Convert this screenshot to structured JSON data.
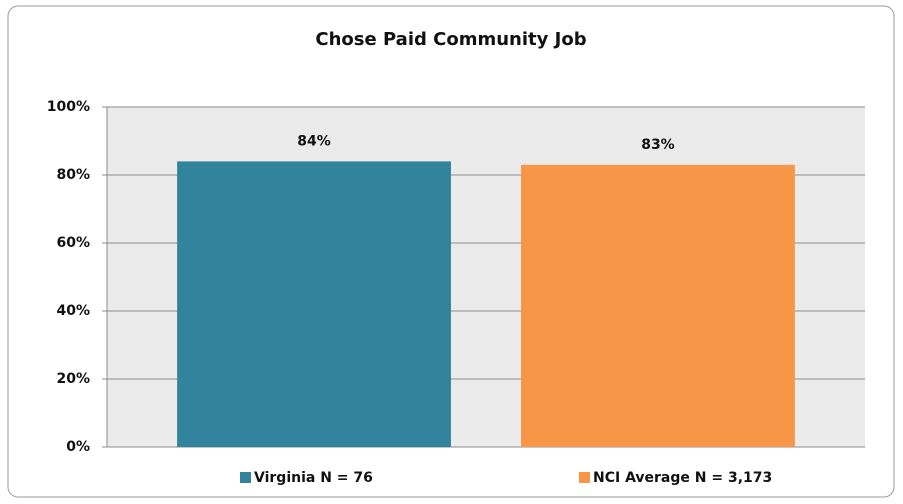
{
  "chart_data": {
    "type": "bar",
    "title": "Chose Paid Community Job",
    "categories": [
      null
    ],
    "series": [
      {
        "name": "Virginia N = 76",
        "color": "#31849b",
        "values": [
          84
        ],
        "value_labels": [
          "84%"
        ]
      },
      {
        "name": "NCI Average N = 3,173",
        "color": "#f79646",
        "values": [
          83
        ],
        "value_labels": [
          "83%"
        ]
      }
    ],
    "ylim": [
      0,
      100
    ],
    "yticks": [
      {
        "value": 0,
        "label": "0%"
      },
      {
        "value": 20,
        "label": "20%"
      },
      {
        "value": 40,
        "label": "40%"
      },
      {
        "value": 60,
        "label": "60%"
      },
      {
        "value": 80,
        "label": "80%"
      },
      {
        "value": 100,
        "label": "100%"
      }
    ],
    "grid": true,
    "legend": "bottom"
  }
}
